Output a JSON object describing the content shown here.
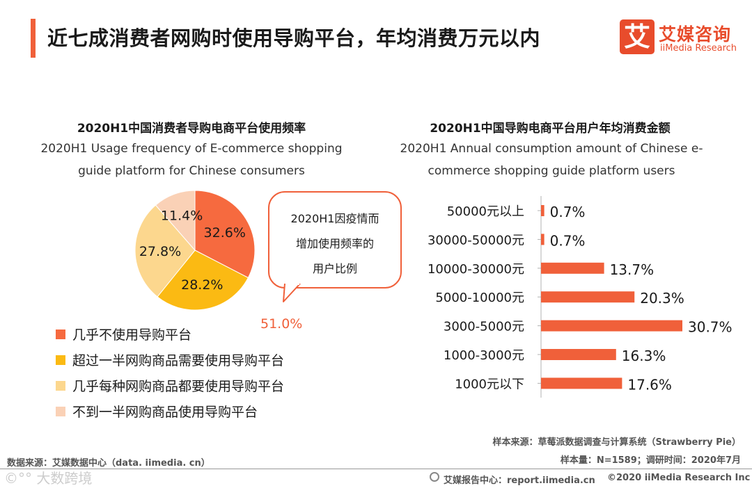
{
  "header": {
    "title": "近七成消费者网购时使用导购平台，年均消费万元以内"
  },
  "logo": {
    "mark": "艾",
    "name_cn": "艾媒咨询",
    "name_en": "iiMedia Research"
  },
  "chart_data": [
    {
      "type": "pie",
      "title": "2020H1中国消费者导购电商平台使用频率",
      "subtitle": "2020H1 Usage frequency of E-commerce shopping guide platform for Chinese consumers",
      "categories": [
        "几乎不使用导购平台",
        "超过一半网购商品需要使用导购平台",
        "几乎每种网购商品都要使用导购平台",
        "不到一半网购商品使用导购平台"
      ],
      "values": [
        32.6,
        28.2,
        27.8,
        11.4
      ],
      "labels": [
        "32.6%",
        "28.2%",
        "27.8%",
        "11.4%"
      ],
      "colors": [
        "#f66a3f",
        "#fbba13",
        "#fcd78e",
        "#fad1b6"
      ],
      "legend_position": "bottom-left",
      "callout": {
        "text_lines": [
          "2020H1因疫情而",
          "增加使用频率的",
          "用户比例"
        ],
        "value": "51.0%"
      }
    },
    {
      "type": "bar",
      "orientation": "horizontal",
      "title": "2020H1中国导购电商平台用户年均消费金额",
      "subtitle": "2020H1 Annual consumption amount of Chinese e-commerce shopping guide platform users",
      "categories": [
        "50000元以上",
        "30000-50000元",
        "10000-30000元",
        "5000-10000元",
        "3000-5000元",
        "1000-3000元",
        "1000元以下"
      ],
      "values": [
        0.7,
        0.7,
        13.7,
        20.3,
        30.7,
        16.3,
        17.6
      ],
      "labels": [
        "0.7%",
        "0.7%",
        "13.7%",
        "20.3%",
        "30.7%",
        "16.3%",
        "17.6%"
      ],
      "color": "#f0603a",
      "xlim": [
        0,
        30.7
      ]
    }
  ],
  "footnotes": {
    "sample_source": "样本来源：草莓派数据调查与计算系统（Strawberry Pie）",
    "sample_size": "样本量：N=1589；调研时间：2020年7月",
    "data_source": "数据来源：艾媒数据中心（data. iimedia. cn）",
    "report_center": "艾媒报告中心：report.iimedia.cn",
    "copyright": "©2020  iiMedia Research  Inc",
    "watermark": "©°° 大数跨境"
  }
}
